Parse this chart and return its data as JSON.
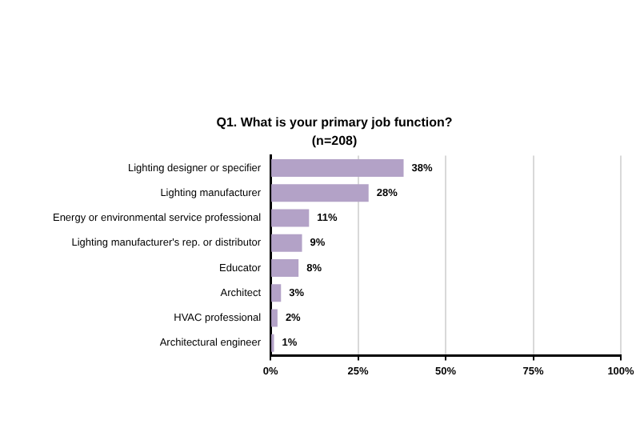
{
  "chart_data": {
    "type": "bar",
    "orientation": "horizontal",
    "title": "Q1. What is your primary job function?",
    "subtitle": "(n=208)",
    "categories": [
      "Lighting designer or specifier",
      "Lighting manufacturer",
      "Energy or environmental service professional",
      "Lighting manufacturer's rep. or distributor",
      "Educator",
      "Architect",
      "HVAC professional",
      "Architectural engineer"
    ],
    "series": [
      {
        "color": "#b3a2c7",
        "values": [
          38,
          28,
          11,
          9,
          8,
          3,
          2,
          1
        ],
        "value_labels": [
          "38%",
          "28%",
          "11%",
          "9%",
          "8%",
          "3%",
          "2%",
          "1%"
        ]
      }
    ],
    "xlim": [
      0,
      100
    ],
    "xticks": [
      {
        "value": 0,
        "label": "0%"
      },
      {
        "value": 25,
        "label": "25%"
      },
      {
        "value": 50,
        "label": "50%"
      },
      {
        "value": 75,
        "label": "75%"
      },
      {
        "value": 100,
        "label": "100%"
      }
    ],
    "grid": "x",
    "legend": false
  }
}
